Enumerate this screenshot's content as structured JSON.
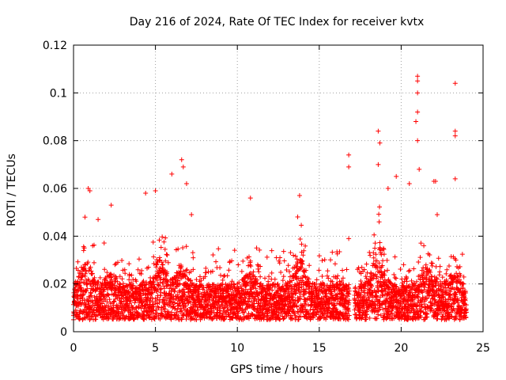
{
  "chart_data": {
    "type": "scatter",
    "title": "Day 216 of 2024, Rate Of TEC Index for receiver kvtx",
    "xlabel": "GPS time / hours",
    "ylabel": "ROTI / TECUs",
    "xlim": [
      0,
      25
    ],
    "ylim": [
      0,
      0.12
    ],
    "x_ticks": [
      "0",
      "5",
      "10",
      "15",
      "20",
      "25"
    ],
    "y_ticks": [
      "0",
      "0.02",
      "0.04",
      "0.06",
      "0.08",
      "0.1",
      "0.12"
    ],
    "grid": true,
    "marker": "+",
    "marker_color": "#ff0000",
    "data_gap_hours": [
      16.85,
      17.15
    ],
    "baseline_band": [
      0.005,
      0.02
    ],
    "series": [
      {
        "name": "kvtx",
        "points": [
          [
            0.9,
            0.06
          ],
          [
            1.0,
            0.059
          ],
          [
            0.7,
            0.048
          ],
          [
            1.5,
            0.047
          ],
          [
            2.3,
            0.053
          ],
          [
            4.4,
            0.058
          ],
          [
            5.0,
            0.059
          ],
          [
            6.0,
            0.066
          ],
          [
            6.6,
            0.072
          ],
          [
            6.7,
            0.069
          ],
          [
            6.9,
            0.062
          ],
          [
            7.2,
            0.049
          ],
          [
            10.8,
            0.056
          ],
          [
            13.8,
            0.057
          ],
          [
            16.8,
            0.074
          ],
          [
            16.8,
            0.069
          ],
          [
            18.6,
            0.084
          ],
          [
            18.7,
            0.079
          ],
          [
            18.6,
            0.07
          ],
          [
            19.2,
            0.06
          ],
          [
            19.7,
            0.065
          ],
          [
            20.5,
            0.062
          ],
          [
            21.0,
            0.107
          ],
          [
            21.0,
            0.105
          ],
          [
            21.0,
            0.1
          ],
          [
            21.0,
            0.092
          ],
          [
            20.9,
            0.088
          ],
          [
            21.0,
            0.08
          ],
          [
            21.1,
            0.068
          ],
          [
            22.0,
            0.063
          ],
          [
            22.1,
            0.063
          ],
          [
            23.3,
            0.104
          ],
          [
            23.3,
            0.084
          ],
          [
            23.3,
            0.082
          ],
          [
            23.3,
            0.064
          ],
          [
            22.2,
            0.049
          ],
          [
            12.6,
            0.031
          ],
          [
            16.8,
            0.039
          ]
        ]
      }
    ]
  }
}
